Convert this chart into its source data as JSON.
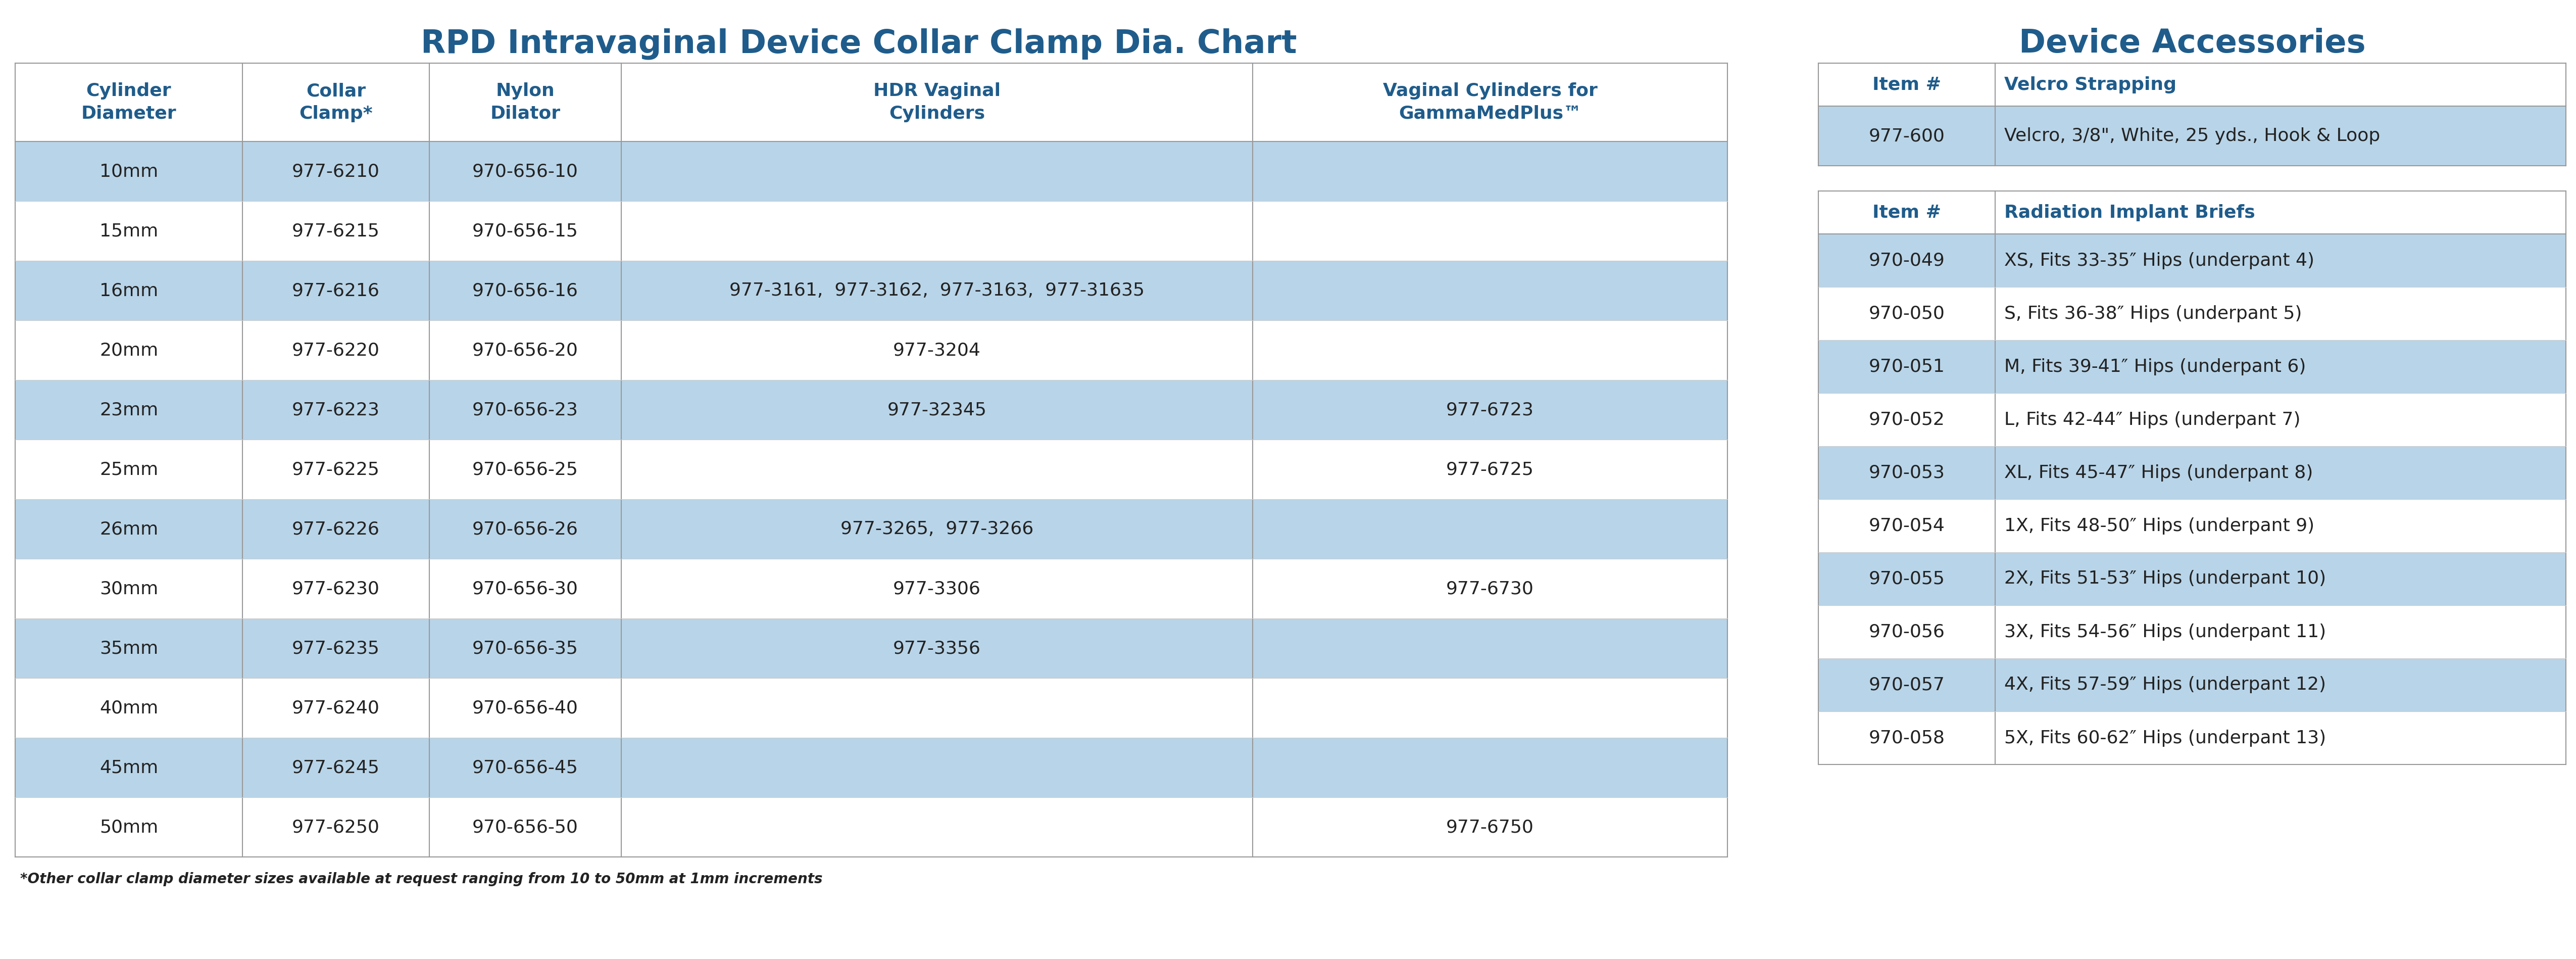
{
  "title_left": "RPD Intravaginal Device Collar Clamp Dia. Chart",
  "title_right": "Device Accessories",
  "title_color": "#1f5c8b",
  "bg_color": "#ffffff",
  "highlight_color": "#b8d4e8",
  "text_color": "#222222",
  "header_color": "#1f5c8b",
  "left_rows": [
    {
      "dia": "10mm",
      "clamp": "977-6210",
      "dilator": "970-656-10",
      "hdr": "",
      "gamma": "",
      "highlight": true
    },
    {
      "dia": "15mm",
      "clamp": "977-6215",
      "dilator": "970-656-15",
      "hdr": "",
      "gamma": "",
      "highlight": false
    },
    {
      "dia": "16mm",
      "clamp": "977-6216",
      "dilator": "970-656-16",
      "hdr": "977-3161,  977-3162,  977-3163,  977-31635",
      "gamma": "",
      "highlight": true
    },
    {
      "dia": "20mm",
      "clamp": "977-6220",
      "dilator": "970-656-20",
      "hdr": "977-3204",
      "gamma": "",
      "highlight": false
    },
    {
      "dia": "23mm",
      "clamp": "977-6223",
      "dilator": "970-656-23",
      "hdr": "977-32345",
      "gamma": "977-6723",
      "highlight": true
    },
    {
      "dia": "25mm",
      "clamp": "977-6225",
      "dilator": "970-656-25",
      "hdr": "",
      "gamma": "977-6725",
      "highlight": false
    },
    {
      "dia": "26mm",
      "clamp": "977-6226",
      "dilator": "970-656-26",
      "hdr": "977-3265,  977-3266",
      "gamma": "",
      "highlight": true
    },
    {
      "dia": "30mm",
      "clamp": "977-6230",
      "dilator": "970-656-30",
      "hdr": "977-3306",
      "gamma": "977-6730",
      "highlight": false
    },
    {
      "dia": "35mm",
      "clamp": "977-6235",
      "dilator": "970-656-35",
      "hdr": "977-3356",
      "gamma": "",
      "highlight": true
    },
    {
      "dia": "40mm",
      "clamp": "977-6240",
      "dilator": "970-656-40",
      "hdr": "",
      "gamma": "",
      "highlight": false
    },
    {
      "dia": "45mm",
      "clamp": "977-6245",
      "dilator": "970-656-45",
      "hdr": "",
      "gamma": "",
      "highlight": true
    },
    {
      "dia": "50mm",
      "clamp": "977-6250",
      "dilator": "970-656-50",
      "hdr": "",
      "gamma": "977-6750",
      "highlight": false
    }
  ],
  "footnote": "*Other collar clamp diameter sizes available at request ranging from 10 to 50mm at 1mm increments",
  "right_velcro_rows": [
    {
      "item": "977-600",
      "desc": "Velcro, 3/8\", White, 25 yds., Hook & Loop",
      "highlight": true
    }
  ],
  "right_briefs_rows": [
    {
      "item": "970-049",
      "desc": "XS, Fits 33-35″ Hips (underpant 4)",
      "highlight": true
    },
    {
      "item": "970-050",
      "desc": "S, Fits 36-38″ Hips (underpant 5)",
      "highlight": false
    },
    {
      "item": "970-051",
      "desc": "M, Fits 39-41″ Hips (underpant 6)",
      "highlight": true
    },
    {
      "item": "970-052",
      "desc": "L, Fits 42-44″ Hips (underpant 7)",
      "highlight": false
    },
    {
      "item": "970-053",
      "desc": "XL, Fits 45-47″ Hips (underpant 8)",
      "highlight": true
    },
    {
      "item": "970-054",
      "desc": "1X, Fits 48-50″ Hips (underpant 9)",
      "highlight": false
    },
    {
      "item": "970-055",
      "desc": "2X, Fits 51-53″ Hips (underpant 10)",
      "highlight": true
    },
    {
      "item": "970-056",
      "desc": "3X, Fits 54-56″ Hips (underpant 11)",
      "highlight": false
    },
    {
      "item": "970-057",
      "desc": "4X, Fits 57-59″ Hips (underpant 12)",
      "highlight": true
    },
    {
      "item": "970-058",
      "desc": "5X, Fits 60-62″ Hips (underpant 13)",
      "highlight": false
    }
  ]
}
